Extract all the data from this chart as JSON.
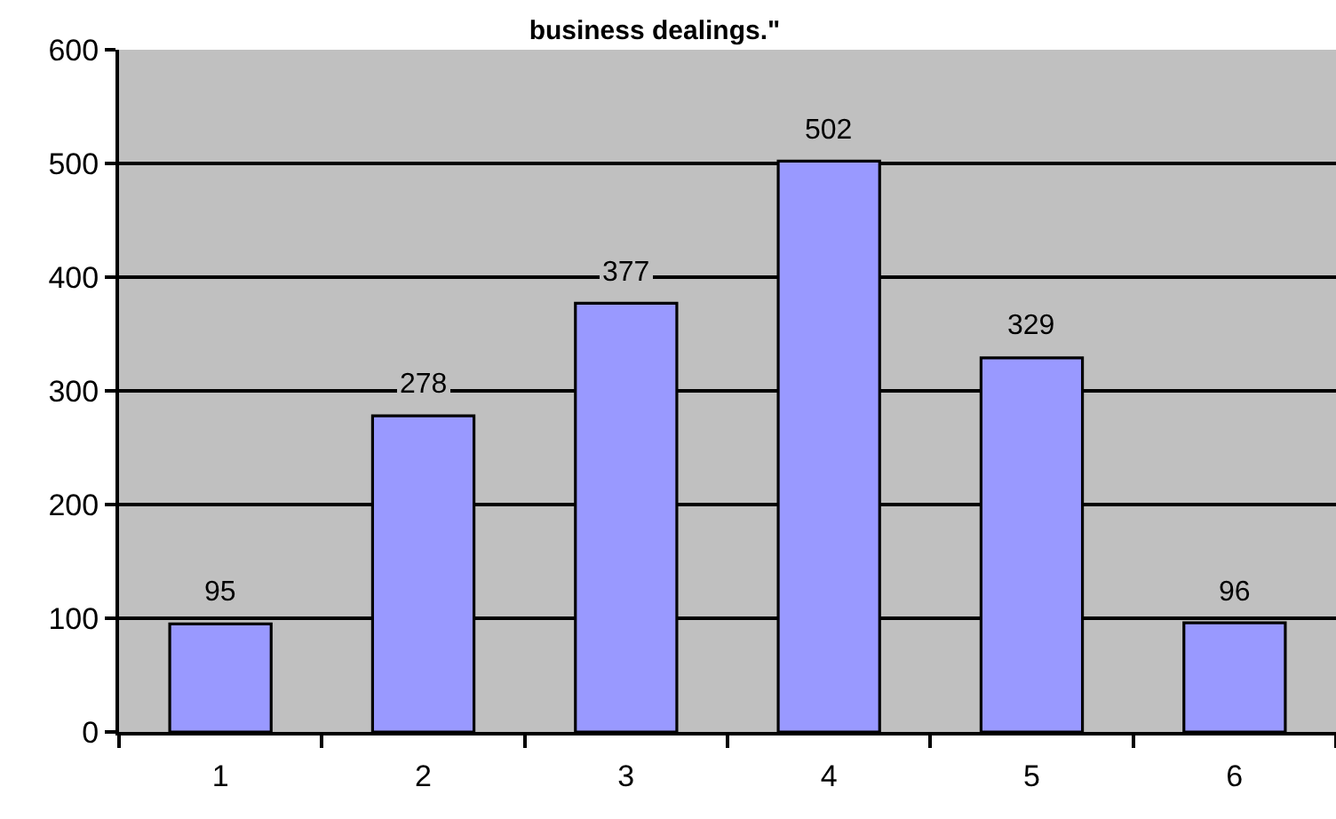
{
  "chart_data": {
    "type": "bar",
    "title": "business dealings.\"",
    "categories": [
      "1",
      "2",
      "3",
      "4",
      "5",
      "6"
    ],
    "values": [
      95,
      278,
      377,
      502,
      329,
      96
    ],
    "color": "#9999ff",
    "ylim": [
      0,
      600
    ],
    "yticks": [
      0,
      100,
      200,
      300,
      400,
      500,
      600
    ],
    "grid": "y",
    "data_labels": true
  }
}
